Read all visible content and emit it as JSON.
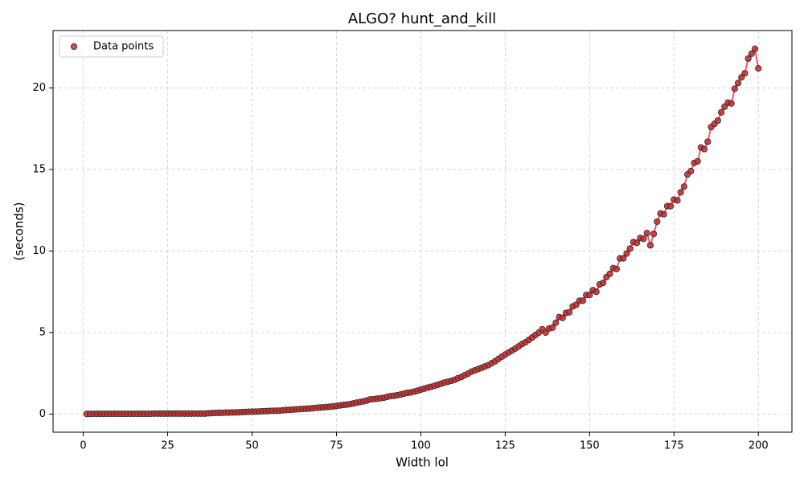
{
  "chart_data": {
    "type": "scatter",
    "title": "ALGO? hunt_and_kill",
    "xlabel": "Width lol",
    "ylabel": "(seconds)",
    "legend": "upper left",
    "grid": true,
    "xlim": [
      -8.95,
      209.95
    ],
    "ylim": [
      -1.11,
      23.52
    ],
    "xticks": [
      0,
      25,
      50,
      75,
      100,
      125,
      150,
      175,
      200
    ],
    "yticks": [
      0,
      5,
      10,
      15,
      20
    ],
    "series": [
      {
        "name": "Data points",
        "color": "#d62728",
        "line_color": "#e8606a",
        "x": [
          1,
          2,
          3,
          4,
          5,
          6,
          7,
          8,
          9,
          10,
          11,
          12,
          13,
          14,
          15,
          16,
          17,
          18,
          19,
          20,
          21,
          22,
          23,
          24,
          25,
          26,
          27,
          28,
          29,
          30,
          31,
          32,
          33,
          34,
          35,
          36,
          37,
          38,
          39,
          40,
          41,
          42,
          43,
          44,
          45,
          46,
          47,
          48,
          49,
          50,
          51,
          52,
          53,
          54,
          55,
          56,
          57,
          58,
          59,
          60,
          61,
          62,
          63,
          64,
          65,
          66,
          67,
          68,
          69,
          70,
          71,
          72,
          73,
          74,
          75,
          76,
          77,
          78,
          79,
          80,
          81,
          82,
          83,
          84,
          85,
          86,
          87,
          88,
          89,
          90,
          91,
          92,
          93,
          94,
          95,
          96,
          97,
          98,
          99,
          100,
          101,
          102,
          103,
          104,
          105,
          106,
          107,
          108,
          109,
          110,
          111,
          112,
          113,
          114,
          115,
          116,
          117,
          118,
          119,
          120,
          121,
          122,
          123,
          124,
          125,
          126,
          127,
          128,
          129,
          130,
          131,
          132,
          133,
          134,
          135,
          136,
          137,
          138,
          139,
          140,
          141,
          142,
          143,
          144,
          145,
          146,
          147,
          148,
          149,
          150,
          151,
          152,
          153,
          154,
          155,
          156,
          157,
          158,
          159,
          160,
          161,
          162,
          163,
          164,
          165,
          166,
          167,
          168,
          169,
          170,
          171,
          172,
          173,
          174,
          175,
          176,
          177,
          178,
          179,
          180,
          181,
          182,
          183,
          184,
          185,
          186,
          187,
          188,
          189,
          190,
          191,
          192,
          193,
          194,
          195,
          196,
          197,
          198,
          199,
          200
        ],
        "values": [
          0.01,
          0.01,
          0.02,
          0.02,
          0.02,
          0.02,
          0.02,
          0.02,
          0.02,
          0.02,
          0.02,
          0.02,
          0.02,
          0.02,
          0.02,
          0.02,
          0.02,
          0.02,
          0.02,
          0.02,
          0.03,
          0.03,
          0.03,
          0.03,
          0.03,
          0.03,
          0.03,
          0.03,
          0.03,
          0.03,
          0.03,
          0.03,
          0.03,
          0.03,
          0.03,
          0.03,
          0.05,
          0.06,
          0.07,
          0.08,
          0.08,
          0.09,
          0.09,
          0.1,
          0.1,
          0.11,
          0.12,
          0.13,
          0.14,
          0.15,
          0.15,
          0.16,
          0.17,
          0.18,
          0.19,
          0.2,
          0.2,
          0.21,
          0.23,
          0.25,
          0.26,
          0.27,
          0.29,
          0.3,
          0.32,
          0.33,
          0.34,
          0.36,
          0.38,
          0.4,
          0.41,
          0.43,
          0.45,
          0.47,
          0.5,
          0.53,
          0.56,
          0.58,
          0.61,
          0.65,
          0.7,
          0.74,
          0.78,
          0.83,
          0.9,
          0.92,
          0.94,
          0.97,
          1.0,
          1.05,
          1.1,
          1.12,
          1.16,
          1.2,
          1.25,
          1.3,
          1.33,
          1.38,
          1.43,
          1.5,
          1.56,
          1.62,
          1.67,
          1.73,
          1.8,
          1.86,
          1.93,
          1.98,
          2.04,
          2.1,
          2.2,
          2.28,
          2.38,
          2.48,
          2.6,
          2.68,
          2.76,
          2.84,
          2.92,
          3.0,
          3.12,
          3.24,
          3.38,
          3.52,
          3.65,
          3.78,
          3.9,
          4.02,
          4.15,
          4.3,
          4.4,
          4.55,
          4.7,
          4.85,
          5.0,
          5.2,
          5.0,
          5.25,
          5.3,
          5.6,
          5.95,
          5.9,
          6.2,
          6.25,
          6.6,
          6.7,
          6.95,
          6.95,
          7.3,
          7.3,
          7.6,
          7.5,
          7.95,
          8.05,
          8.4,
          8.6,
          8.95,
          8.9,
          9.55,
          9.55,
          9.85,
          10.15,
          10.55,
          10.5,
          10.8,
          10.75,
          11.1,
          10.35,
          11.05,
          11.8,
          12.3,
          12.25,
          12.75,
          12.75,
          13.15,
          13.1,
          13.6,
          13.95,
          14.7,
          14.9,
          15.4,
          15.5,
          16.35,
          16.25,
          16.7,
          17.6,
          17.8,
          18.0,
          18.5,
          18.85,
          19.1,
          19.05,
          19.95,
          20.3,
          20.65,
          20.9,
          21.8,
          22.1,
          22.4,
          21.2
        ]
      }
    ]
  }
}
